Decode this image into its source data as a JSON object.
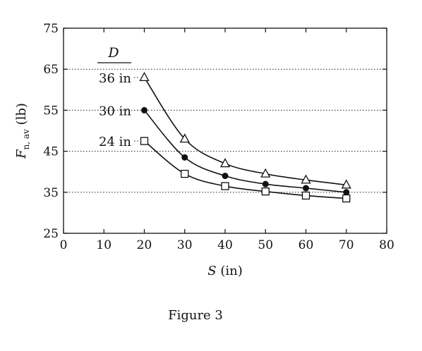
{
  "chart_data": {
    "type": "line",
    "xlabel": "S (in)",
    "ylabel": "F n, av (lb)",
    "xlabel_parts": {
      "var": "S",
      "rest": " (in)"
    },
    "ylabel_parts": {
      "var": "F",
      "sub": "n, av",
      "rest": " (lb)"
    },
    "xlim": [
      0,
      80
    ],
    "ylim": [
      25,
      75
    ],
    "xticks": [
      0,
      10,
      20,
      30,
      40,
      50,
      60,
      70,
      80
    ],
    "yticks": [
      25,
      35,
      45,
      55,
      65,
      75
    ],
    "grid": {
      "y_dotted_at": [
        35,
        45,
        55,
        65
      ]
    },
    "legend_title": "D",
    "series": [
      {
        "name": "36 in",
        "marker": "triangle-open",
        "x": [
          20,
          30,
          40,
          50,
          60,
          70
        ],
        "y": [
          63,
          48,
          42,
          39.5,
          38,
          36.8
        ]
      },
      {
        "name": "30 in",
        "marker": "circle-filled",
        "x": [
          20,
          30,
          40,
          50,
          60,
          70
        ],
        "y": [
          55,
          43.5,
          39,
          37,
          36,
          35
        ]
      },
      {
        "name": "24 in",
        "marker": "square-open",
        "x": [
          20,
          30,
          40,
          50,
          60,
          70
        ],
        "y": [
          47.5,
          39.5,
          36.5,
          35.2,
          34.2,
          33.5
        ]
      }
    ]
  },
  "caption": "Figure 3"
}
